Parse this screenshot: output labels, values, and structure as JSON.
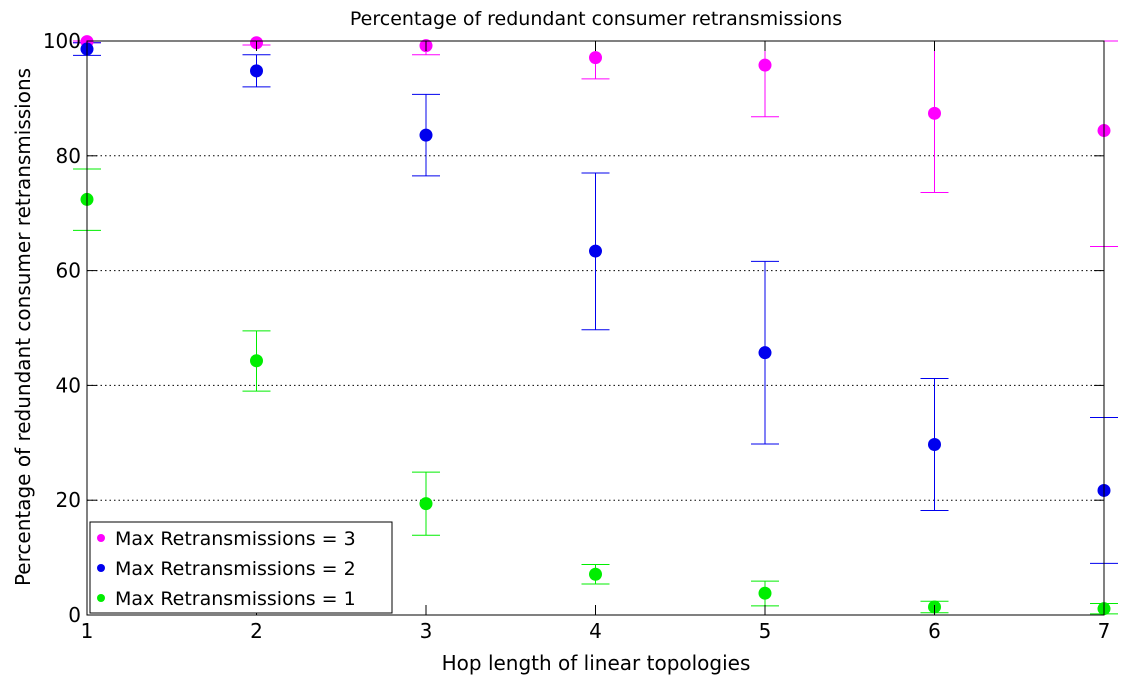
{
  "chart_data": {
    "type": "scatter",
    "title": "Percentage of redundant consumer retransmissions",
    "xlabel": "Hop length of linear topologies",
    "ylabel": "Percentage of redundant consumer retransmissions",
    "xlim": [
      1,
      7
    ],
    "ylim": [
      0,
      100
    ],
    "xticks": [
      1,
      2,
      3,
      4,
      5,
      6,
      7
    ],
    "yticks": [
      0,
      20,
      40,
      60,
      80,
      100
    ],
    "grid": "horizontal-dotted",
    "legend_position": "bottom-left",
    "series": [
      {
        "name": "Max Retransmissions = 3",
        "color": "#ff00ff",
        "x": [
          1,
          2,
          3,
          4,
          5,
          6,
          7
        ],
        "y": [
          99.9,
          99.7,
          99.2,
          97.1,
          95.8,
          87.4,
          84.4
        ],
        "err_low": [
          99.7,
          99.3,
          97.6,
          93.4,
          86.8,
          73.6,
          64.2
        ],
        "err_high": [
          100,
          100,
          100,
          100,
          100,
          100,
          100
        ]
      },
      {
        "name": "Max Retransmissions = 2",
        "color": "#0000ee",
        "x": [
          1,
          2,
          3,
          4,
          5,
          6,
          7
        ],
        "y": [
          98.6,
          94.8,
          83.6,
          63.4,
          45.7,
          29.7,
          21.7
        ],
        "err_low": [
          97.5,
          92.0,
          76.5,
          49.7,
          29.8,
          18.2,
          9.0
        ],
        "err_high": [
          99.7,
          97.6,
          90.7,
          77.0,
          61.6,
          41.2,
          34.4
        ]
      },
      {
        "name": "Max Retransmissions = 1",
        "color": "#00ee00",
        "x": [
          1,
          2,
          3,
          4,
          5,
          6,
          7
        ],
        "y": [
          72.4,
          44.3,
          19.4,
          7.1,
          3.8,
          1.4,
          1.1
        ],
        "err_low": [
          67.0,
          39.0,
          13.9,
          5.4,
          1.6,
          0.4,
          0.2
        ],
        "err_high": [
          77.7,
          49.5,
          24.9,
          8.8,
          5.9,
          2.4,
          2.0
        ]
      }
    ]
  }
}
